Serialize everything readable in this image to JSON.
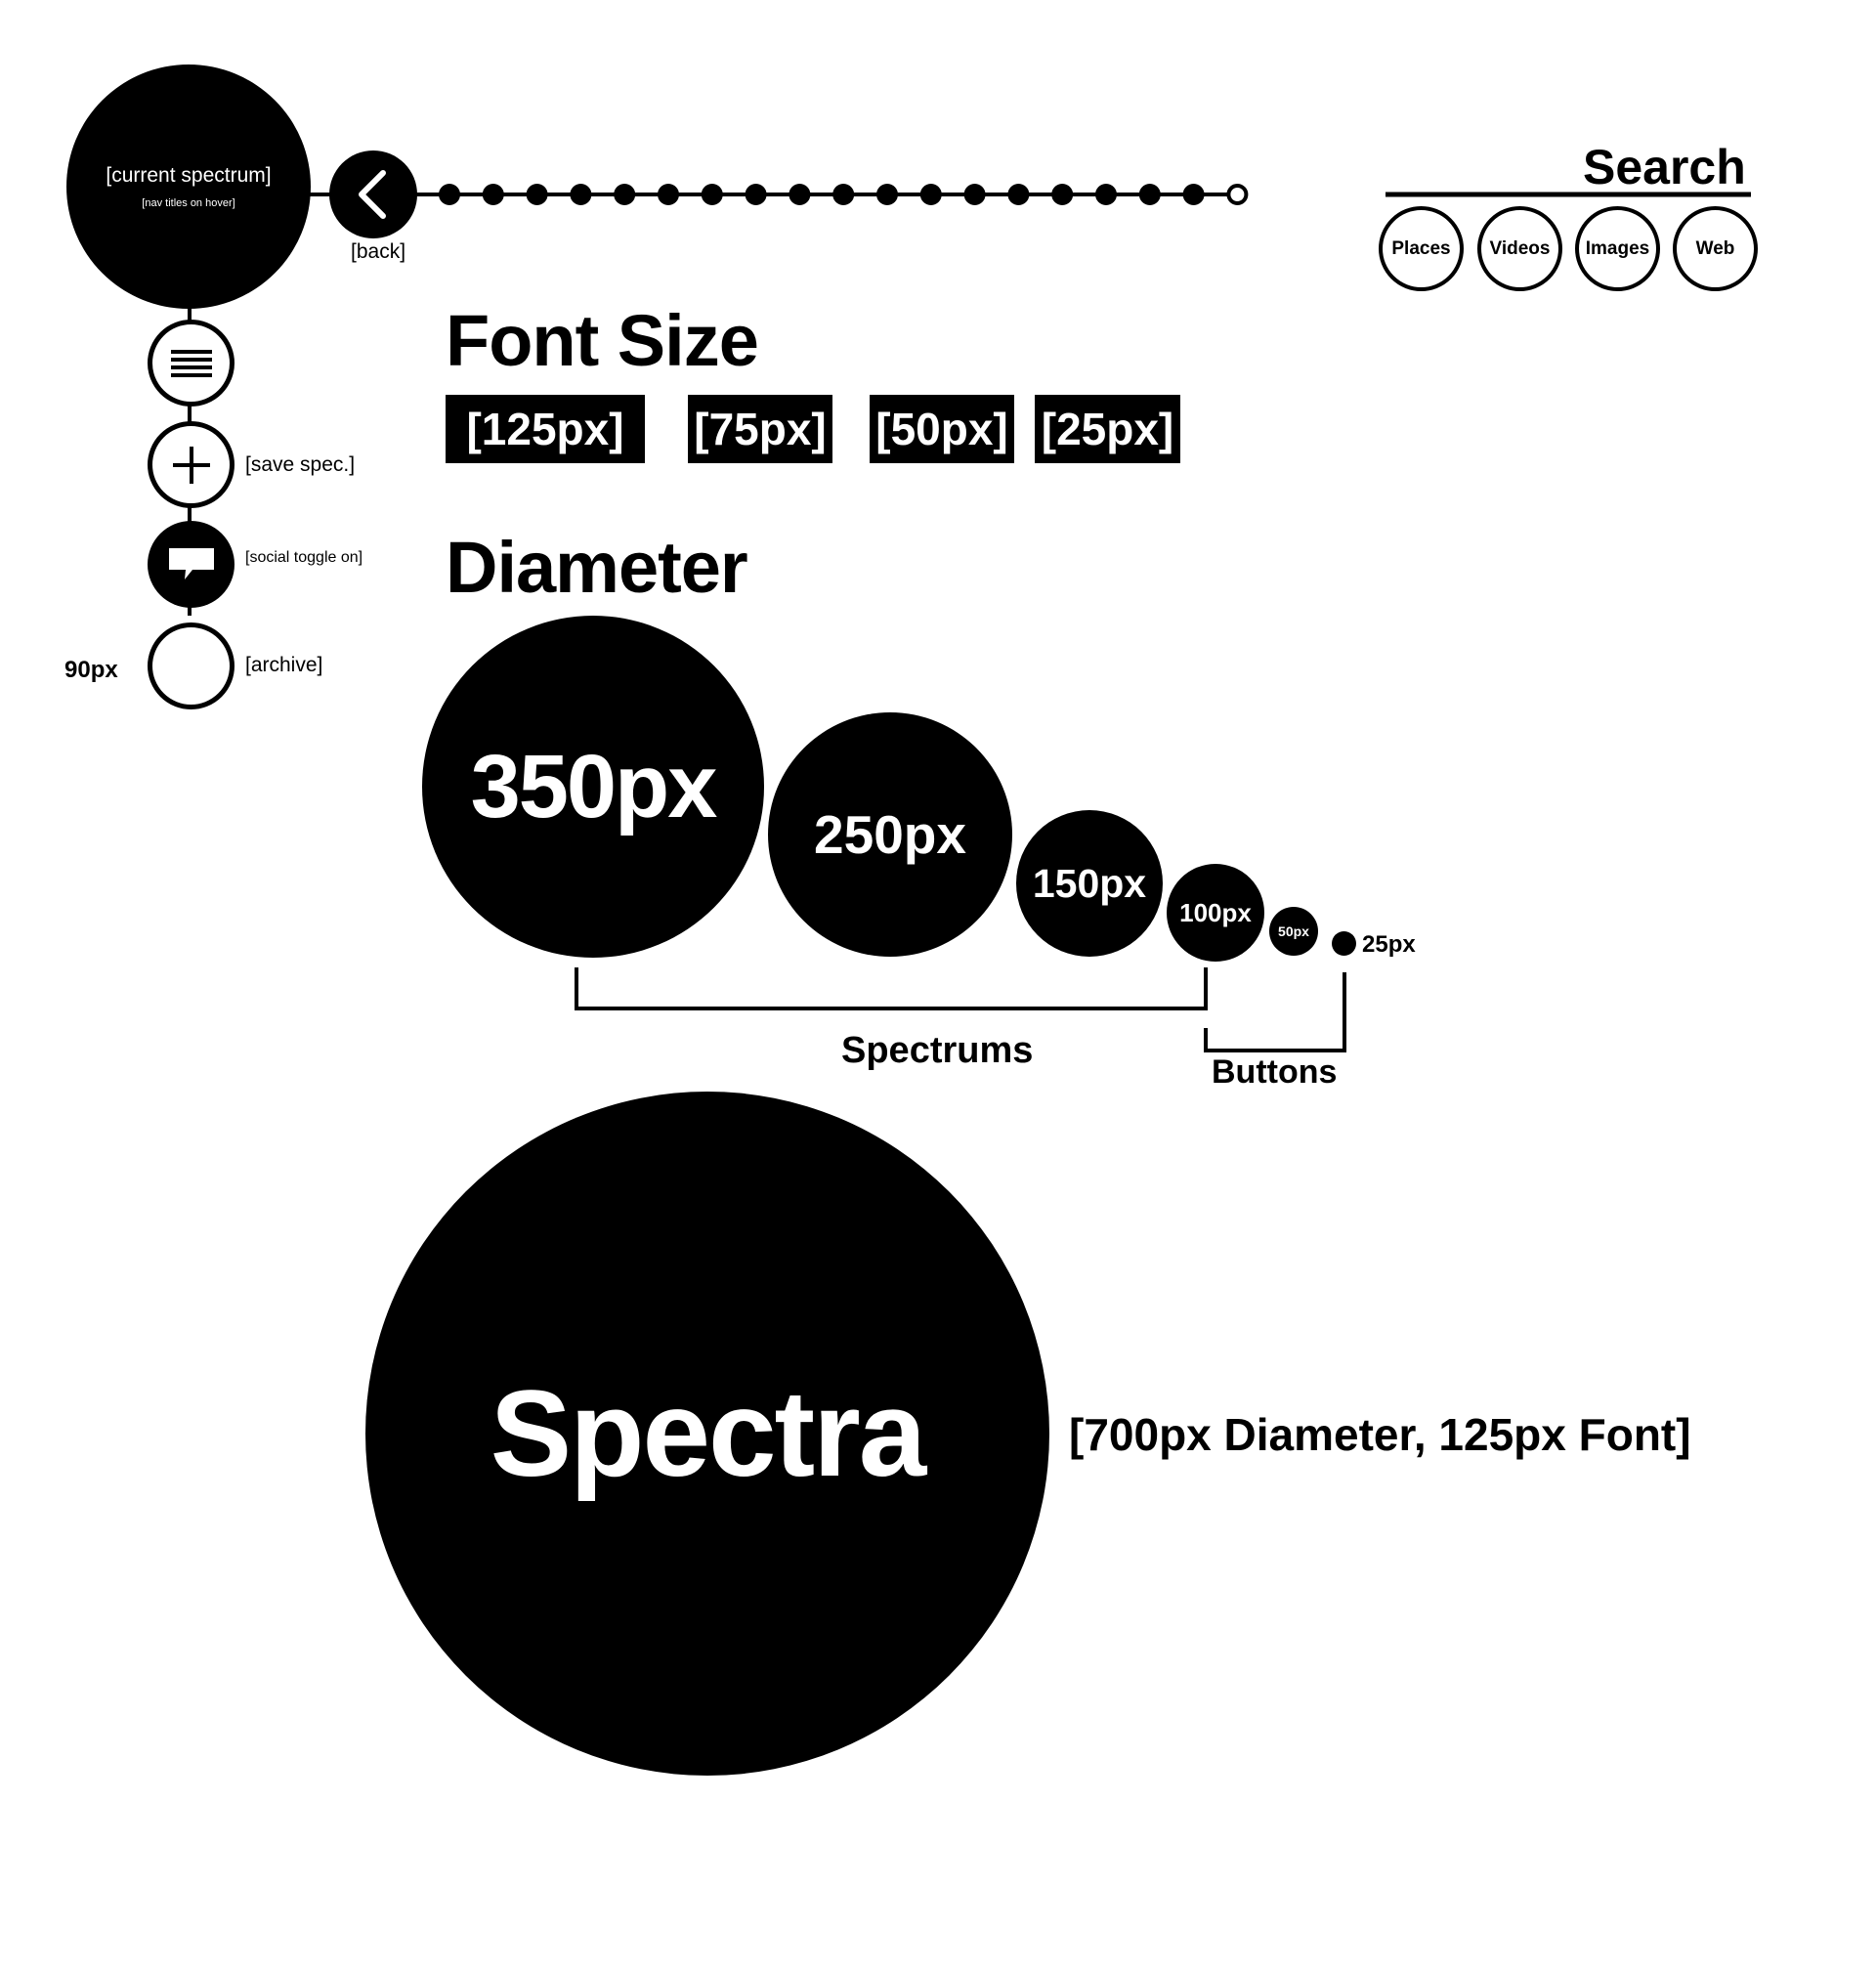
{
  "nav": {
    "current_title": "[current spectrum]",
    "current_subtitle": "[nav titles on hover]",
    "back_label": "[back]",
    "icon_names": [
      "menu-icon",
      "plus-icon",
      "chat-bubble-icon",
      "empty-circle-icon"
    ],
    "save_label": "[save spec.]",
    "social_label": "[social toggle on]",
    "archive_label": "[archive]",
    "size_label": "90px",
    "timeline_dots_filled": 18,
    "timeline_dots_empty": 1
  },
  "search": {
    "title": "Search",
    "buttons": [
      "Places",
      "Videos",
      "Images",
      "Web"
    ]
  },
  "font_size": {
    "title": "Font Size",
    "samples": [
      "[125px]",
      "[75px]",
      "[50px]",
      "[25px]"
    ]
  },
  "diameter": {
    "title": "Diameter",
    "circles": [
      "350px",
      "250px",
      "150px",
      "100px",
      "50px",
      "25px"
    ],
    "group_spectrums": "Spectrums",
    "group_buttons": "Buttons"
  },
  "spectra": {
    "title": "Spectra",
    "caption": "[700px Diameter, 125px Font]"
  },
  "colors": {
    "foreground": "#000000",
    "background": "#ffffff"
  }
}
